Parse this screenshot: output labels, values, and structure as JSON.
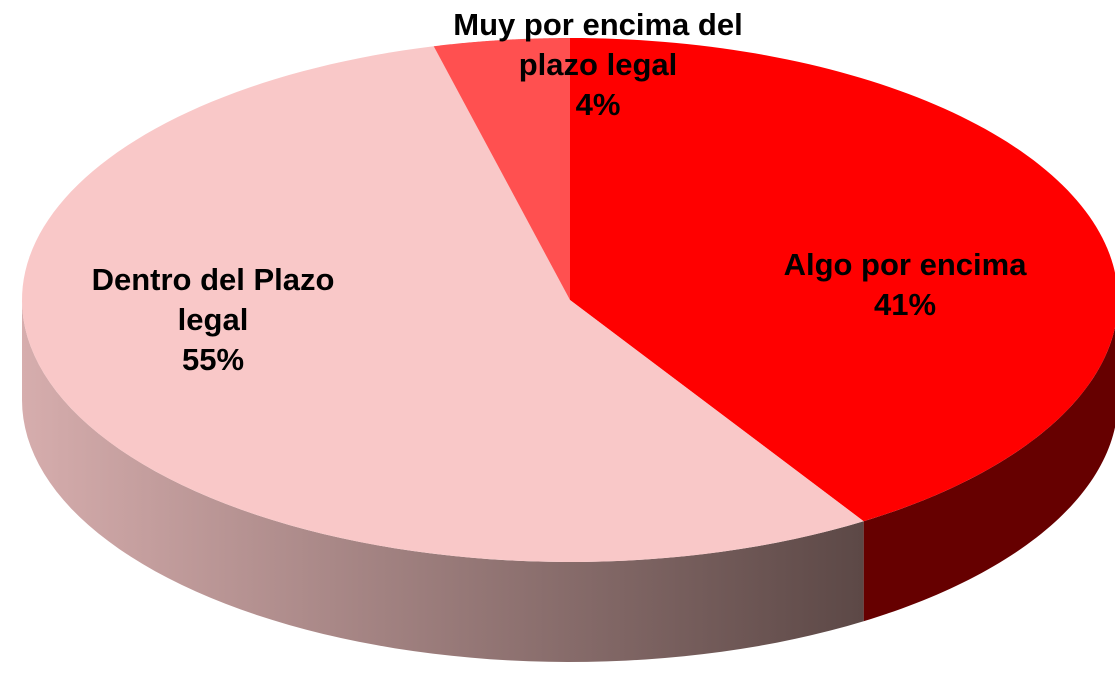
{
  "chart_data": {
    "type": "pie",
    "categories": [
      "Algo por encima",
      "Dentro del Plazo legal",
      "Muy por encima del plazo legal"
    ],
    "values": [
      41,
      55,
      4
    ],
    "value_labels": [
      "41%",
      "55%",
      "4%"
    ],
    "colors": [
      "#ff0000",
      "#f9c8c8",
      "#ff5050"
    ]
  }
}
